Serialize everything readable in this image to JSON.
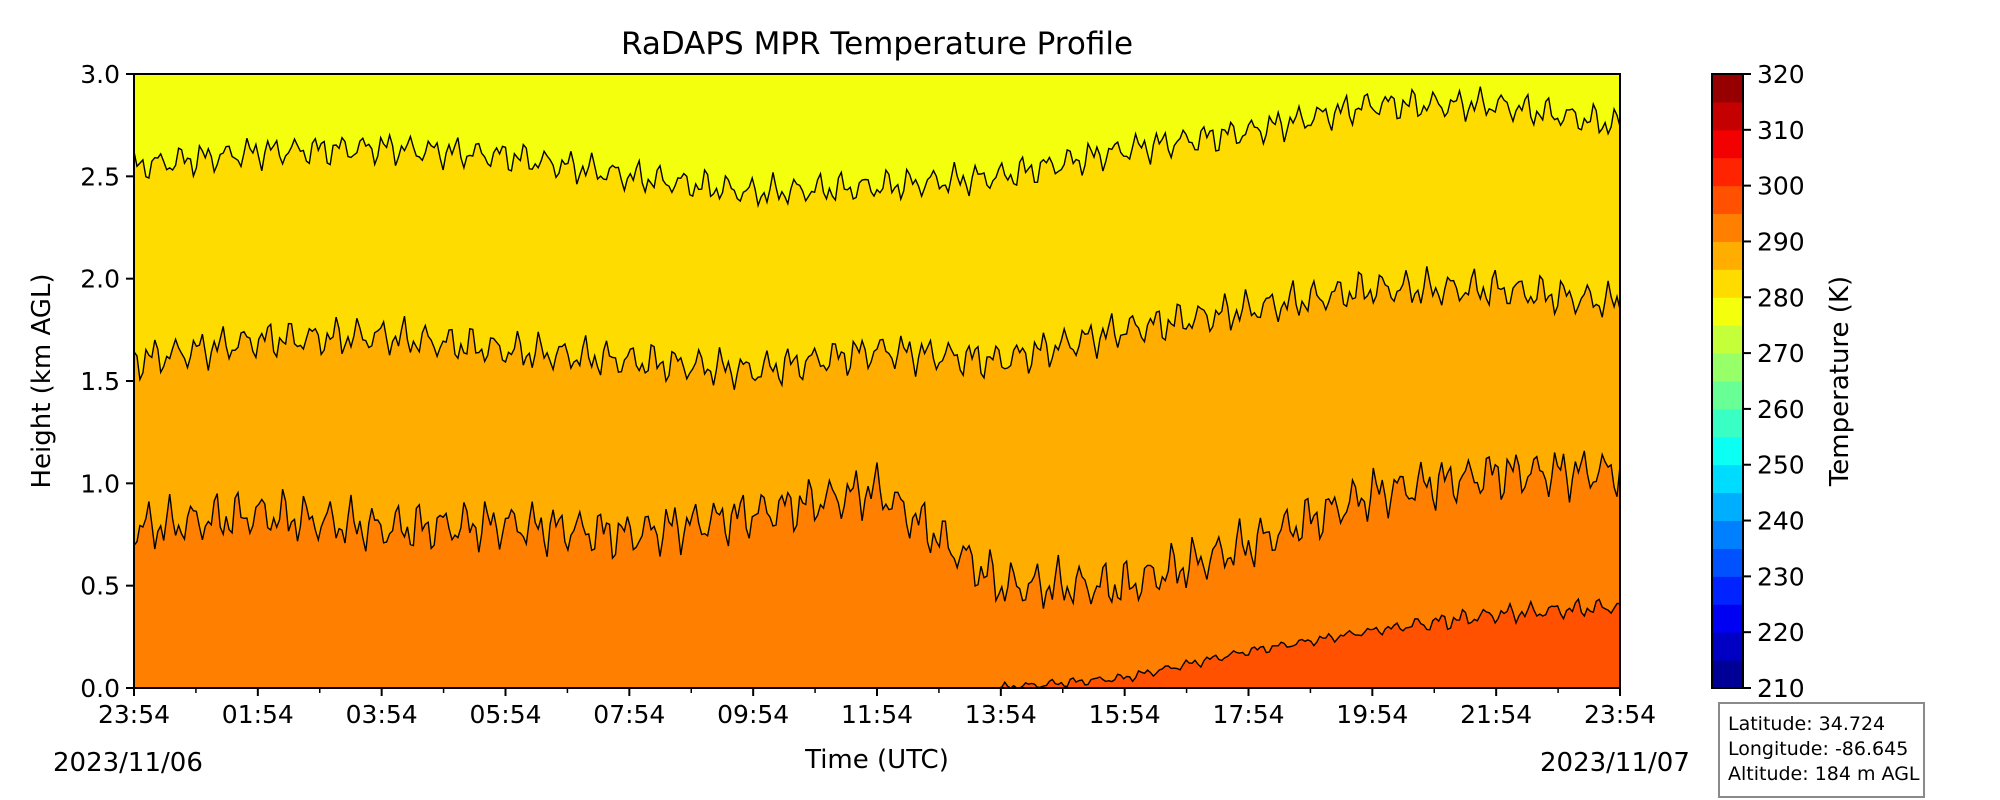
{
  "chart_data": {
    "type": "heatmap",
    "subtype": "filled-contour",
    "title": "RaDAPS MPR Temperature Profile",
    "xlabel": "Time (UTC)",
    "ylabel": "Height (km AGL)",
    "xticks": [
      "23:54",
      "01:54",
      "03:54",
      "05:54",
      "07:54",
      "09:54",
      "11:54",
      "13:54",
      "15:54",
      "17:54",
      "19:54",
      "21:54",
      "23:54"
    ],
    "date_start": "2023/11/06",
    "date_end": "2023/11/07",
    "yticks": [
      "0.0",
      "0.5",
      "1.0",
      "1.5",
      "2.0",
      "2.5",
      "3.0"
    ],
    "ylim": [
      0,
      3.0
    ],
    "colorbar": {
      "label": "Temperature (K)",
      "range": [
        210,
        320
      ],
      "step": 5,
      "ticks": [
        "210",
        "220",
        "230",
        "240",
        "250",
        "260",
        "270",
        "280",
        "290",
        "300",
        "310",
        "320"
      ],
      "colormap": "jet"
    },
    "contour_levels": [
      275,
      280,
      285,
      290,
      295
    ],
    "contour_heights_km": {
      "times_utc": [
        "23:54",
        "01:54",
        "03:54",
        "05:54",
        "07:54",
        "09:54",
        "11:54",
        "13:54",
        "15:54",
        "17:54",
        "19:54",
        "21:54",
        "23:54"
      ],
      "k280": [
        2.55,
        2.62,
        2.64,
        2.6,
        2.5,
        2.42,
        2.45,
        2.5,
        2.63,
        2.72,
        2.85,
        2.85,
        2.75
      ],
      "k285": [
        1.6,
        1.7,
        1.72,
        1.65,
        1.6,
        1.55,
        1.65,
        1.6,
        1.75,
        1.85,
        1.95,
        1.95,
        1.88
      ],
      "k290": [
        0.78,
        0.85,
        0.78,
        0.8,
        0.75,
        0.85,
        0.97,
        0.5,
        0.5,
        0.7,
        0.95,
        1.05,
        1.06
      ],
      "k295": [
        0,
        0,
        0,
        0,
        0,
        0,
        0,
        0,
        0.05,
        0.18,
        0.28,
        0.36,
        0.4
      ]
    }
  },
  "info": {
    "latitude": "Latitude: 34.724",
    "longitude": "Longitude: -86.645",
    "altitude": "Altitude: 184 m AGL"
  }
}
